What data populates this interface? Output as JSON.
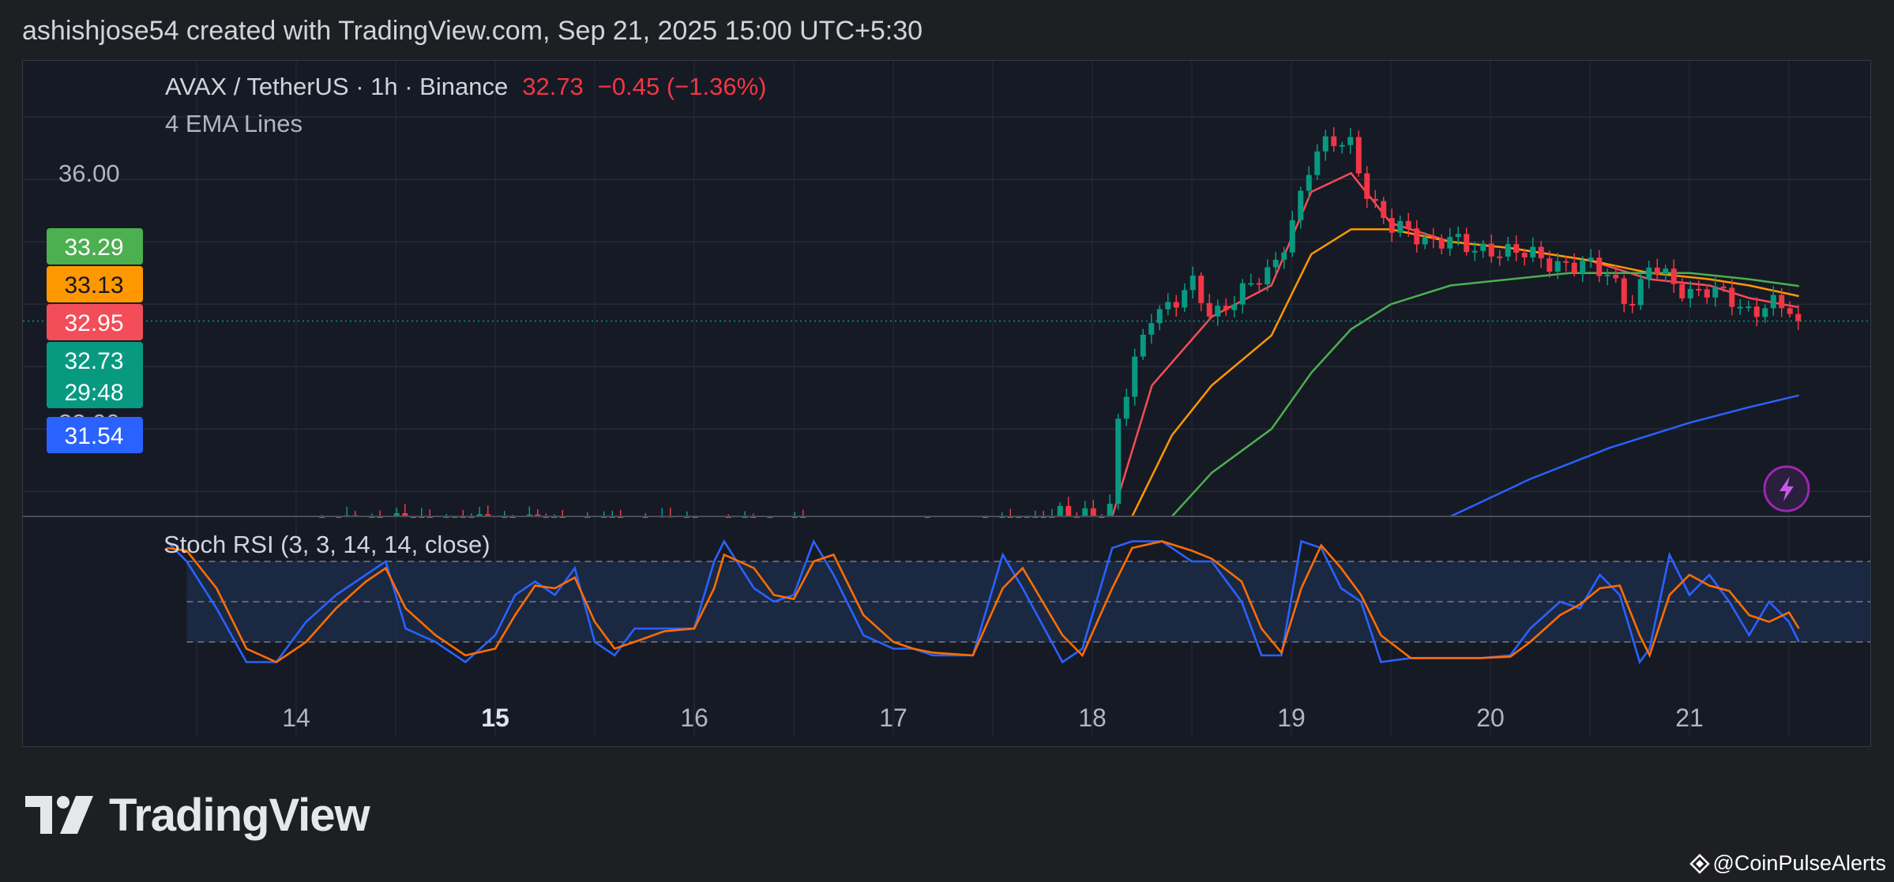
{
  "header": {
    "text": "ashishjose54 created with TradingView.com, Sep 21, 2025 15:00 UTC+5:30"
  },
  "legend": {
    "symbol": "AVAX / TetherUS · 1h · Binance",
    "price": "32.73",
    "change": "−0.45 (−1.36%)",
    "indicator": "4 EMA Lines"
  },
  "price_axis": {
    "tick_label": "36.00",
    "hidden_label": "32.00"
  },
  "price_badges": [
    {
      "label": "33.29",
      "color": "#4caf50"
    },
    {
      "label": "33.13",
      "color": "#ff9800"
    },
    {
      "label": "32.95",
      "color": "#f24d58"
    },
    {
      "label": "32.73",
      "color": "#089981"
    },
    {
      "label": "31.54",
      "color": "#2962ff"
    }
  ],
  "countdown": "29:48",
  "oscillator": {
    "title": "Stoch RSI (3, 3, 14, 14, close)"
  },
  "x_ticks": [
    "14",
    "15",
    "16",
    "17",
    "18",
    "19",
    "20",
    "21"
  ],
  "brand": {
    "name": "TradingView"
  },
  "watermark": {
    "text": "@CoinPulseAlerts"
  },
  "icons": {
    "bolt": "lightning-icon",
    "logo": "tradingview-logo-icon",
    "watermark": "diamond-icon"
  },
  "colors": {
    "up": "#089981",
    "down": "#f23645",
    "ema1": "#f24d58",
    "ema2": "#ff9800",
    "ema3": "#4caf50",
    "ema4": "#2962ff",
    "k": "#2962ff",
    "d": "#ff6d00"
  },
  "chart_data": [
    {
      "type": "candlestick",
      "title": "AVAX / TetherUS · 1h · Binance",
      "x_axis_labels": [
        "14",
        "15",
        "16",
        "17",
        "18",
        "19",
        "20",
        "21"
      ],
      "ylim": [
        29.6,
        36.9
      ],
      "price_levels": {
        "last": 32.73,
        "ema_values": [
          33.29,
          33.13,
          32.95,
          31.54
        ]
      },
      "close_path": [
        [
          13.4,
          29.3
        ],
        [
          13.6,
          29.2
        ],
        [
          14.4,
          29.5
        ],
        [
          16.5,
          29.4
        ],
        [
          17.0,
          29.2
        ],
        [
          18.1,
          29.7
        ],
        [
          18.12,
          31.0
        ],
        [
          18.2,
          31.9
        ],
        [
          18.3,
          32.9
        ],
        [
          18.4,
          33.0
        ],
        [
          18.5,
          33.3
        ],
        [
          18.6,
          32.8
        ],
        [
          18.7,
          33.1
        ],
        [
          18.8,
          33.3
        ],
        [
          18.9,
          33.5
        ],
        [
          19.0,
          34.3
        ],
        [
          19.05,
          34.8
        ],
        [
          19.1,
          35.3
        ],
        [
          19.2,
          35.6
        ],
        [
          19.3,
          35.6
        ],
        [
          19.4,
          34.6
        ],
        [
          19.5,
          34.2
        ],
        [
          19.6,
          34.2
        ],
        [
          19.7,
          34.0
        ],
        [
          19.8,
          34.0
        ],
        [
          19.9,
          33.9
        ],
        [
          20.0,
          33.9
        ],
        [
          20.1,
          33.8
        ],
        [
          20.2,
          33.8
        ],
        [
          20.3,
          33.7
        ],
        [
          20.4,
          33.6
        ],
        [
          20.5,
          33.6
        ],
        [
          20.6,
          33.5
        ],
        [
          20.7,
          33.0
        ],
        [
          20.75,
          33.2
        ],
        [
          20.8,
          33.6
        ],
        [
          20.9,
          33.4
        ],
        [
          21.0,
          33.2
        ],
        [
          21.1,
          33.2
        ],
        [
          21.2,
          33.1
        ],
        [
          21.3,
          32.9
        ],
        [
          21.4,
          33.0
        ],
        [
          21.5,
          32.9
        ],
        [
          21.55,
          32.73
        ]
      ],
      "ema_lines": [
        {
          "points": [
            [
              18.1,
              29.6
            ],
            [
              18.3,
              31.7
            ],
            [
              18.6,
              32.8
            ],
            [
              18.9,
              33.3
            ],
            [
              19.1,
              34.8
            ],
            [
              19.3,
              35.1
            ],
            [
              19.5,
              34.3
            ],
            [
              19.8,
              34.0
            ],
            [
              20.1,
              33.9
            ],
            [
              20.5,
              33.7
            ],
            [
              20.8,
              33.4
            ],
            [
              21.1,
              33.3
            ],
            [
              21.3,
              33.1
            ],
            [
              21.55,
              32.95
            ]
          ]
        },
        {
          "points": [
            [
              18.2,
              29.6
            ],
            [
              18.4,
              30.9
            ],
            [
              18.6,
              31.7
            ],
            [
              18.9,
              32.5
            ],
            [
              19.1,
              33.8
            ],
            [
              19.3,
              34.2
            ],
            [
              19.5,
              34.2
            ],
            [
              19.8,
              34.0
            ],
            [
              20.1,
              33.9
            ],
            [
              20.5,
              33.7
            ],
            [
              20.8,
              33.5
            ],
            [
              21.1,
              33.4
            ],
            [
              21.3,
              33.3
            ],
            [
              21.55,
              33.13
            ]
          ]
        },
        {
          "points": [
            [
              18.4,
              29.6
            ],
            [
              18.6,
              30.3
            ],
            [
              18.9,
              31.0
            ],
            [
              19.1,
              31.9
            ],
            [
              19.3,
              32.6
            ],
            [
              19.5,
              33.0
            ],
            [
              19.8,
              33.3
            ],
            [
              20.1,
              33.4
            ],
            [
              20.4,
              33.5
            ],
            [
              20.7,
              33.5
            ],
            [
              21.0,
              33.5
            ],
            [
              21.3,
              33.4
            ],
            [
              21.55,
              33.29
            ]
          ]
        },
        {
          "points": [
            [
              19.8,
              29.6
            ],
            [
              20.2,
              30.2
            ],
            [
              20.6,
              30.7
            ],
            [
              21.0,
              31.1
            ],
            [
              21.3,
              31.35
            ],
            [
              21.55,
              31.54
            ]
          ]
        }
      ]
    },
    {
      "type": "line",
      "title": "Stoch RSI (3, 3, 14, 14, close)",
      "ylim": [
        0,
        100
      ],
      "levels": [
        80,
        50,
        20
      ],
      "series": [
        {
          "points": [
            [
              13.35,
              95
            ],
            [
              13.45,
              80
            ],
            [
              13.6,
              45
            ],
            [
              13.75,
              5
            ],
            [
              13.9,
              5
            ],
            [
              14.05,
              35
            ],
            [
              14.2,
              55
            ],
            [
              14.35,
              70
            ],
            [
              14.45,
              80
            ],
            [
              14.55,
              30
            ],
            [
              14.7,
              20
            ],
            [
              14.85,
              5
            ],
            [
              15.0,
              25
            ],
            [
              15.1,
              55
            ],
            [
              15.2,
              65
            ],
            [
              15.3,
              55
            ],
            [
              15.4,
              75
            ],
            [
              15.5,
              20
            ],
            [
              15.6,
              10
            ],
            [
              15.7,
              30
            ],
            [
              15.85,
              30
            ],
            [
              16.0,
              30
            ],
            [
              16.1,
              80
            ],
            [
              16.15,
              95
            ],
            [
              16.3,
              60
            ],
            [
              16.4,
              50
            ],
            [
              16.5,
              55
            ],
            [
              16.6,
              95
            ],
            [
              16.7,
              70
            ],
            [
              16.85,
              25
            ],
            [
              17.0,
              15
            ],
            [
              17.1,
              15
            ],
            [
              17.2,
              10
            ],
            [
              17.4,
              10
            ],
            [
              17.55,
              85
            ],
            [
              17.65,
              60
            ],
            [
              17.85,
              5
            ],
            [
              17.95,
              15
            ],
            [
              18.1,
              90
            ],
            [
              18.2,
              95
            ],
            [
              18.35,
              95
            ],
            [
              18.5,
              80
            ],
            [
              18.6,
              80
            ],
            [
              18.75,
              50
            ],
            [
              18.85,
              10
            ],
            [
              18.95,
              10
            ],
            [
              19.05,
              95
            ],
            [
              19.15,
              90
            ],
            [
              19.25,
              60
            ],
            [
              19.35,
              50
            ],
            [
              19.45,
              5
            ],
            [
              19.6,
              8
            ],
            [
              19.8,
              8
            ],
            [
              19.95,
              8
            ],
            [
              20.1,
              10
            ],
            [
              20.2,
              30
            ],
            [
              20.35,
              50
            ],
            [
              20.45,
              45
            ],
            [
              20.55,
              70
            ],
            [
              20.65,
              55
            ],
            [
              20.75,
              5
            ],
            [
              20.8,
              15
            ],
            [
              20.9,
              85
            ],
            [
              21.0,
              55
            ],
            [
              21.1,
              70
            ],
            [
              21.2,
              50
            ],
            [
              21.3,
              25
            ],
            [
              21.4,
              50
            ],
            [
              21.5,
              35
            ],
            [
              21.55,
              20
            ]
          ]
        },
        {
          "points": [
            [
              13.35,
              90
            ],
            [
              13.45,
              88
            ],
            [
              13.6,
              60
            ],
            [
              13.75,
              15
            ],
            [
              13.9,
              5
            ],
            [
              14.05,
              20
            ],
            [
              14.2,
              45
            ],
            [
              14.35,
              65
            ],
            [
              14.45,
              75
            ],
            [
              14.55,
              45
            ],
            [
              14.7,
              25
            ],
            [
              14.85,
              10
            ],
            [
              15.0,
              15
            ],
            [
              15.1,
              40
            ],
            [
              15.2,
              62
            ],
            [
              15.3,
              60
            ],
            [
              15.4,
              68
            ],
            [
              15.5,
              35
            ],
            [
              15.6,
              15
            ],
            [
              15.7,
              20
            ],
            [
              15.85,
              28
            ],
            [
              16.0,
              30
            ],
            [
              16.1,
              60
            ],
            [
              16.15,
              85
            ],
            [
              16.3,
              75
            ],
            [
              16.4,
              55
            ],
            [
              16.5,
              52
            ],
            [
              16.6,
              80
            ],
            [
              16.7,
              85
            ],
            [
              16.85,
              40
            ],
            [
              17.0,
              20
            ],
            [
              17.1,
              15
            ],
            [
              17.2,
              12
            ],
            [
              17.4,
              10
            ],
            [
              17.55,
              60
            ],
            [
              17.65,
              75
            ],
            [
              17.85,
              25
            ],
            [
              17.95,
              10
            ],
            [
              18.1,
              60
            ],
            [
              18.2,
              90
            ],
            [
              18.35,
              95
            ],
            [
              18.5,
              88
            ],
            [
              18.6,
              82
            ],
            [
              18.75,
              65
            ],
            [
              18.85,
              30
            ],
            [
              18.95,
              12
            ],
            [
              19.05,
              60
            ],
            [
              19.15,
              92
            ],
            [
              19.25,
              75
            ],
            [
              19.35,
              55
            ],
            [
              19.45,
              25
            ],
            [
              19.6,
              8
            ],
            [
              19.8,
              8
            ],
            [
              19.95,
              8
            ],
            [
              20.1,
              9
            ],
            [
              20.2,
              20
            ],
            [
              20.35,
              40
            ],
            [
              20.45,
              48
            ],
            [
              20.55,
              60
            ],
            [
              20.65,
              62
            ],
            [
              20.75,
              25
            ],
            [
              20.8,
              10
            ],
            [
              20.9,
              55
            ],
            [
              21.0,
              70
            ],
            [
              21.1,
              62
            ],
            [
              21.2,
              58
            ],
            [
              21.3,
              40
            ],
            [
              21.4,
              35
            ],
            [
              21.5,
              42
            ],
            [
              21.55,
              30
            ]
          ]
        }
      ]
    }
  ]
}
